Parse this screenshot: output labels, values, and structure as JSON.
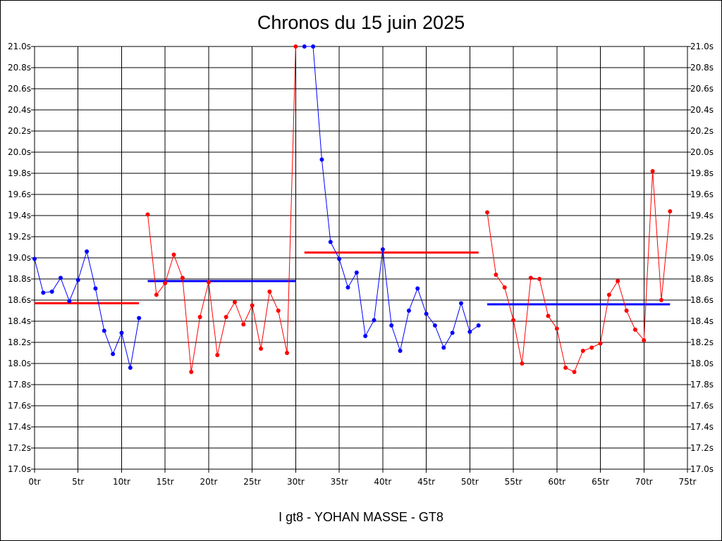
{
  "chart_data": {
    "type": "line",
    "title": "Chronos du 15 juin 2025",
    "footer": "I gt8 - YOHAN MASSE - GT8",
    "x_axis": {
      "min": 0,
      "max": 75,
      "step": 5,
      "tick_suffix": "tr"
    },
    "y_axis": {
      "min": 17.0,
      "max": 21.0,
      "step": 0.2,
      "tick_suffix": "s",
      "decimals": 1,
      "mirrored_right": true
    },
    "grid": true,
    "series": [
      {
        "color": "#0000ff",
        "points": [
          [
            0,
            18.99
          ],
          [
            1,
            18.67
          ],
          [
            2,
            18.68
          ],
          [
            3,
            18.81
          ],
          [
            4,
            18.59
          ],
          [
            5,
            18.79
          ],
          [
            6,
            19.06
          ],
          [
            7,
            18.71
          ],
          [
            8,
            18.31
          ],
          [
            9,
            18.09
          ],
          [
            10,
            18.29
          ],
          [
            11,
            17.96
          ],
          [
            12,
            18.43
          ]
        ],
        "average": {
          "value": 18.57,
          "from": 0,
          "to": 12,
          "color": "#ff0000"
        }
      },
      {
        "color": "#ff0000",
        "points": [
          [
            13,
            19.41
          ],
          [
            14,
            18.65
          ],
          [
            15,
            18.76
          ],
          [
            16,
            19.03
          ],
          [
            17,
            18.81
          ],
          [
            18,
            17.92
          ],
          [
            19,
            18.44
          ],
          [
            20,
            18.77
          ],
          [
            21,
            18.08
          ],
          [
            22,
            18.44
          ],
          [
            23,
            18.58
          ],
          [
            24,
            18.37
          ],
          [
            25,
            18.55
          ],
          [
            26,
            18.14
          ],
          [
            27,
            18.68
          ],
          [
            28,
            18.5
          ],
          [
            29,
            18.1
          ],
          [
            30,
            21.0
          ]
        ],
        "average": {
          "value": 18.78,
          "from": 13,
          "to": 30,
          "color": "#0000ff"
        }
      },
      {
        "color": "#0000ff",
        "points": [
          [
            31,
            21.0
          ],
          [
            32,
            21.0
          ],
          [
            33,
            19.93
          ],
          [
            34,
            19.15
          ],
          [
            35,
            18.99
          ],
          [
            36,
            18.72
          ],
          [
            37,
            18.86
          ],
          [
            38,
            18.26
          ],
          [
            39,
            18.41
          ],
          [
            40,
            19.08
          ],
          [
            41,
            18.36
          ],
          [
            42,
            18.12
          ],
          [
            43,
            18.5
          ],
          [
            44,
            18.71
          ],
          [
            45,
            18.47
          ],
          [
            46,
            18.36
          ],
          [
            47,
            18.15
          ],
          [
            48,
            18.29
          ],
          [
            49,
            18.57
          ],
          [
            50,
            18.3
          ],
          [
            51,
            18.36
          ]
        ],
        "average": {
          "value": 19.05,
          "from": 31,
          "to": 51,
          "color": "#ff0000"
        }
      },
      {
        "color": "#ff0000",
        "points": [
          [
            52,
            19.43
          ],
          [
            53,
            18.84
          ],
          [
            54,
            18.72
          ],
          [
            55,
            18.41
          ],
          [
            56,
            18.0
          ],
          [
            57,
            18.81
          ],
          [
            58,
            18.8
          ],
          [
            59,
            18.45
          ],
          [
            60,
            18.33
          ],
          [
            61,
            17.96
          ],
          [
            62,
            17.92
          ],
          [
            63,
            18.12
          ],
          [
            64,
            18.15
          ],
          [
            65,
            18.19
          ],
          [
            66,
            18.65
          ],
          [
            67,
            18.78
          ],
          [
            68,
            18.5
          ],
          [
            69,
            18.32
          ],
          [
            70,
            18.22
          ],
          [
            71,
            19.82
          ],
          [
            72,
            18.6
          ],
          [
            73,
            19.44
          ]
        ],
        "average": {
          "value": 18.56,
          "from": 52,
          "to": 73,
          "color": "#0000ff"
        }
      }
    ]
  }
}
